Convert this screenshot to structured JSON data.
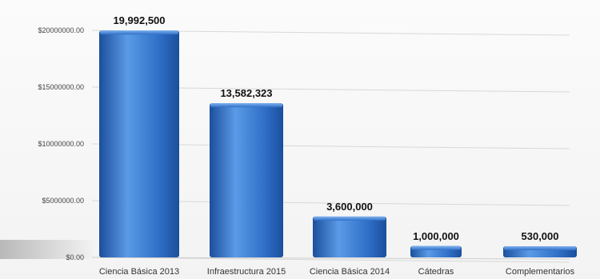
{
  "chart_data": {
    "type": "bar",
    "categories": [
      "Ciencia Básica 2013",
      "Infraestructura 2015",
      "Ciencia Básica 2014",
      "Cátedras",
      "Complementarios"
    ],
    "values": [
      19992500,
      13582323,
      3600000,
      1000000,
      530000
    ],
    "data_labels": [
      "19,992,500",
      "13,582,323",
      "3,600,000",
      "1,000,000",
      "530,000"
    ],
    "y_ticks": [
      0,
      5000000,
      10000000,
      15000000,
      20000000
    ],
    "y_tick_labels": [
      "$0.00",
      "$5000000.00",
      "$10000000.00",
      "$15000000.00",
      "$20000000.00"
    ],
    "ylim": [
      0,
      20000000
    ],
    "grid": true,
    "legend": "none",
    "bar_color": "#2f6fc7",
    "bar_color_light": "#5a9ae6",
    "bar_color_dark": "#1c4f9c"
  }
}
